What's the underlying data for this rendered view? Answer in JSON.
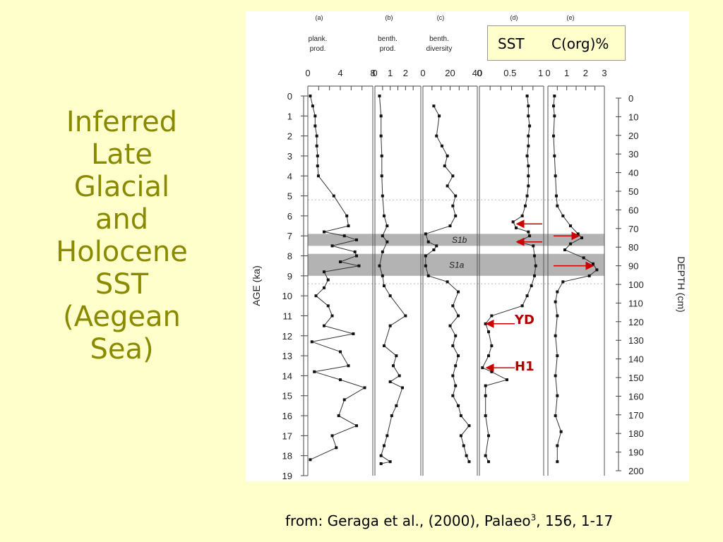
{
  "slide": {
    "title_lines": [
      "Inferred",
      "Late",
      "Glacial",
      "and",
      "Holocene",
      "SST",
      "(Aegean",
      "Sea)"
    ],
    "citation": {
      "prefix": "from: Geraga et al., (2000), Palaeo",
      "superscript": "3",
      "suffix": ", 156, 1-17"
    },
    "overlay_labels": {
      "sst": "SST",
      "corg": "C(org)%"
    },
    "markers": {
      "yd": "YD",
      "h1": "H1"
    },
    "colors": {
      "background": "#ffffcc",
      "title": "#8a8a00",
      "arrows": "#cc0000"
    }
  },
  "chart_data": {
    "type": "line",
    "left_axis": {
      "label": "AGE (ka)",
      "ticks": [
        0,
        1,
        2,
        3,
        4,
        5,
        6,
        7,
        8,
        9,
        10,
        11,
        12,
        13,
        14,
        15,
        16,
        17,
        18,
        19
      ]
    },
    "right_axis": {
      "label": "DEPTH (cm)",
      "ticks": [
        0,
        10,
        20,
        30,
        40,
        50,
        60,
        70,
        80,
        90,
        100,
        110,
        120,
        130,
        140,
        150,
        160,
        170,
        180,
        190,
        200
      ]
    },
    "shaded_bands": [
      {
        "label": "S1b",
        "from_ka": 6.9,
        "to_ka": 7.5
      },
      {
        "label": "S1a",
        "from_ka": 7.9,
        "to_ka": 9.0
      }
    ],
    "panels": [
      {
        "id": "a",
        "header": "(a)",
        "name": [
          "plank.",
          "prod."
        ],
        "xlim": [
          0,
          8
        ],
        "tick_labels": [
          "0",
          "4",
          "8"
        ],
        "tick_values": [
          0,
          4,
          8
        ],
        "points": [
          {
            "x": 0.3,
            "age": 0
          },
          {
            "x": 0.6,
            "age": 0.5
          },
          {
            "x": 0.9,
            "age": 1
          },
          {
            "x": 0.9,
            "age": 1.5
          },
          {
            "x": 1.1,
            "age": 2
          },
          {
            "x": 1.1,
            "age": 2.5
          },
          {
            "x": 1.2,
            "age": 3
          },
          {
            "x": 1.2,
            "age": 3.5
          },
          {
            "x": 1.3,
            "age": 4
          },
          {
            "x": 3.2,
            "age": 5
          },
          {
            "x": 4.8,
            "age": 6
          },
          {
            "x": 5.0,
            "age": 6.5
          },
          {
            "x": 2.0,
            "age": 6.8
          },
          {
            "x": 4.5,
            "age": 7
          },
          {
            "x": 6.0,
            "age": 7.2
          },
          {
            "x": 3.0,
            "age": 7.5
          },
          {
            "x": 5.8,
            "age": 7.8
          },
          {
            "x": 6.0,
            "age": 8
          },
          {
            "x": 4.0,
            "age": 8.3
          },
          {
            "x": 6.3,
            "age": 8.5
          },
          {
            "x": 2.0,
            "age": 8.8
          },
          {
            "x": 2.5,
            "age": 9.2
          },
          {
            "x": 2.0,
            "age": 9.6
          },
          {
            "x": 1.0,
            "age": 10
          },
          {
            "x": 2.5,
            "age": 10.5
          },
          {
            "x": 3.0,
            "age": 11
          },
          {
            "x": 2.0,
            "age": 11.5
          },
          {
            "x": 5.6,
            "age": 11.9
          },
          {
            "x": 0.5,
            "age": 12.3
          },
          {
            "x": 4.0,
            "age": 12.8
          },
          {
            "x": 5.0,
            "age": 13.5
          },
          {
            "x": 0.8,
            "age": 13.8
          },
          {
            "x": 4.0,
            "age": 14.2
          },
          {
            "x": 7.0,
            "age": 14.6
          },
          {
            "x": 4.5,
            "age": 15.2
          },
          {
            "x": 3.8,
            "age": 16
          },
          {
            "x": 6.0,
            "age": 16.5
          },
          {
            "x": 3.0,
            "age": 17
          },
          {
            "x": 3.5,
            "age": 17.6
          },
          {
            "x": 0.3,
            "age": 18.2
          }
        ]
      },
      {
        "id": "b",
        "header": "(b)",
        "name": [
          "benth.",
          "prod."
        ],
        "xlim": [
          0,
          3
        ],
        "tick_labels": [
          "0",
          "1",
          "2"
        ],
        "tick_values": [
          0,
          1,
          2
        ],
        "points": [
          {
            "x": 0.3,
            "age": 0
          },
          {
            "x": 0.4,
            "age": 1
          },
          {
            "x": 0.4,
            "age": 2
          },
          {
            "x": 0.45,
            "age": 3
          },
          {
            "x": 0.45,
            "age": 4
          },
          {
            "x": 0.5,
            "age": 5
          },
          {
            "x": 0.6,
            "age": 6
          },
          {
            "x": 0.8,
            "age": 6.5
          },
          {
            "x": 0.5,
            "age": 7
          },
          {
            "x": 0.8,
            "age": 7.3
          },
          {
            "x": 0.5,
            "age": 7.8
          },
          {
            "x": 0.3,
            "age": 8.5
          },
          {
            "x": 0.5,
            "age": 9
          },
          {
            "x": 0.6,
            "age": 9.5
          },
          {
            "x": 1.0,
            "age": 10
          },
          {
            "x": 2.0,
            "age": 11
          },
          {
            "x": 1.0,
            "age": 11.5
          },
          {
            "x": 0.6,
            "age": 12.5
          },
          {
            "x": 1.4,
            "age": 13
          },
          {
            "x": 1.2,
            "age": 13.5
          },
          {
            "x": 1.6,
            "age": 14
          },
          {
            "x": 1.0,
            "age": 14.3
          },
          {
            "x": 1.8,
            "age": 14.6
          },
          {
            "x": 1.4,
            "age": 15.5
          },
          {
            "x": 1.1,
            "age": 16
          },
          {
            "x": 0.8,
            "age": 17
          },
          {
            "x": 0.6,
            "age": 17.5
          },
          {
            "x": 0.4,
            "age": 18
          },
          {
            "x": 1.0,
            "age": 18.3
          },
          {
            "x": 0.4,
            "age": 18.4
          }
        ]
      },
      {
        "id": "c",
        "header": "(c)",
        "name": [
          "benth.",
          "diversity"
        ],
        "xlim": [
          0,
          40
        ],
        "tick_labels": [
          "0",
          "20",
          "40"
        ],
        "tick_values": [
          0,
          20,
          40
        ],
        "points": [
          {
            "x": 8,
            "age": 0.5
          },
          {
            "x": 12,
            "age": 1
          },
          {
            "x": 10,
            "age": 2
          },
          {
            "x": 14,
            "age": 2.5
          },
          {
            "x": 18,
            "age": 3
          },
          {
            "x": 16,
            "age": 3.5
          },
          {
            "x": 22,
            "age": 4
          },
          {
            "x": 18,
            "age": 4.5
          },
          {
            "x": 24,
            "age": 5
          },
          {
            "x": 22,
            "age": 5.5
          },
          {
            "x": 24,
            "age": 6
          },
          {
            "x": 20,
            "age": 6.5
          },
          {
            "x": 2,
            "age": 6.9
          },
          {
            "x": 4,
            "age": 7.3
          },
          {
            "x": 10,
            "age": 7.5
          },
          {
            "x": 8,
            "age": 7.7
          },
          {
            "x": 2,
            "age": 8.0
          },
          {
            "x": 2,
            "age": 8.5
          },
          {
            "x": 4,
            "age": 9.0
          },
          {
            "x": 18,
            "age": 9.3
          },
          {
            "x": 26,
            "age": 9.8
          },
          {
            "x": 22,
            "age": 10.5
          },
          {
            "x": 26,
            "age": 11
          },
          {
            "x": 20,
            "age": 11.5
          },
          {
            "x": 24,
            "age": 12
          },
          {
            "x": 22,
            "age": 12.5
          },
          {
            "x": 26,
            "age": 13
          },
          {
            "x": 24,
            "age": 13.5
          },
          {
            "x": 22,
            "age": 14
          },
          {
            "x": 24,
            "age": 14.5
          },
          {
            "x": 22,
            "age": 15
          },
          {
            "x": 26,
            "age": 15.5
          },
          {
            "x": 28,
            "age": 16
          },
          {
            "x": 34,
            "age": 16.5
          },
          {
            "x": 28,
            "age": 17
          },
          {
            "x": 30,
            "age": 17.5
          },
          {
            "x": 32,
            "age": 18
          },
          {
            "x": 34,
            "age": 18.3
          }
        ]
      },
      {
        "id": "d",
        "header": "(d)",
        "name": [],
        "xlim": [
          0,
          1.05
        ],
        "tick_labels": [
          "0",
          "0.5",
          "1"
        ],
        "tick_values": [
          0,
          0.5,
          1
        ],
        "points": [
          {
            "x": 0.78,
            "age": 0
          },
          {
            "x": 0.8,
            "age": 0.5
          },
          {
            "x": 0.8,
            "age": 1
          },
          {
            "x": 0.82,
            "age": 1.5
          },
          {
            "x": 0.8,
            "age": 2
          },
          {
            "x": 0.8,
            "age": 2.5
          },
          {
            "x": 0.78,
            "age": 3
          },
          {
            "x": 0.8,
            "age": 3.5
          },
          {
            "x": 0.8,
            "age": 4
          },
          {
            "x": 0.8,
            "age": 4.5
          },
          {
            "x": 0.78,
            "age": 5
          },
          {
            "x": 0.75,
            "age": 5.5
          },
          {
            "x": 0.7,
            "age": 6
          },
          {
            "x": 0.55,
            "age": 6.3
          },
          {
            "x": 0.6,
            "age": 6.6
          },
          {
            "x": 0.8,
            "age": 6.8
          },
          {
            "x": 0.82,
            "age": 7
          },
          {
            "x": 0.65,
            "age": 7.3
          },
          {
            "x": 0.88,
            "age": 7.5
          },
          {
            "x": 0.9,
            "age": 8
          },
          {
            "x": 0.92,
            "age": 8.5
          },
          {
            "x": 0.9,
            "age": 9
          },
          {
            "x": 0.85,
            "age": 9.5
          },
          {
            "x": 0.78,
            "age": 10
          },
          {
            "x": 0.7,
            "age": 10.5
          },
          {
            "x": 0.2,
            "age": 11
          },
          {
            "x": 0.1,
            "age": 11.4
          },
          {
            "x": 0.15,
            "age": 11.8
          },
          {
            "x": 0.2,
            "age": 12.5
          },
          {
            "x": 0.15,
            "age": 13
          },
          {
            "x": 0.05,
            "age": 13.6
          },
          {
            "x": 0.2,
            "age": 13.8
          },
          {
            "x": 0.45,
            "age": 14.2
          },
          {
            "x": 0.1,
            "age": 14.5
          },
          {
            "x": 0.1,
            "age": 15
          },
          {
            "x": 0.1,
            "age": 16
          },
          {
            "x": 0.15,
            "age": 17
          },
          {
            "x": 0.1,
            "age": 18
          },
          {
            "x": 0.15,
            "age": 18.3
          }
        ]
      },
      {
        "id": "e",
        "header": "(e)",
        "name": [],
        "xlim": [
          0,
          3
        ],
        "tick_labels": [
          "0",
          "1",
          "2",
          "3"
        ],
        "tick_values": [
          0,
          1,
          2,
          3
        ],
        "points": [
          {
            "x": 0.35,
            "age": 0
          },
          {
            "x": 0.3,
            "age": 0.5
          },
          {
            "x": 0.35,
            "age": 1
          },
          {
            "x": 0.3,
            "age": 2
          },
          {
            "x": 0.35,
            "age": 3
          },
          {
            "x": 0.4,
            "age": 4
          },
          {
            "x": 0.45,
            "age": 5
          },
          {
            "x": 0.5,
            "age": 5.5
          },
          {
            "x": 0.8,
            "age": 6
          },
          {
            "x": 1.2,
            "age": 6.5
          },
          {
            "x": 1.6,
            "age": 6.9
          },
          {
            "x": 1.8,
            "age": 7.1
          },
          {
            "x": 1.2,
            "age": 7.4
          },
          {
            "x": 0.9,
            "age": 7.7
          },
          {
            "x": 1.9,
            "age": 8.1
          },
          {
            "x": 2.4,
            "age": 8.4
          },
          {
            "x": 2.6,
            "age": 8.7
          },
          {
            "x": 2.2,
            "age": 9.0
          },
          {
            "x": 0.8,
            "age": 9.3
          },
          {
            "x": 0.5,
            "age": 9.8
          },
          {
            "x": 0.4,
            "age": 10.3
          },
          {
            "x": 0.5,
            "age": 11
          },
          {
            "x": 0.4,
            "age": 12
          },
          {
            "x": 0.5,
            "age": 13
          },
          {
            "x": 0.4,
            "age": 14
          },
          {
            "x": 0.5,
            "age": 15
          },
          {
            "x": 0.4,
            "age": 16
          },
          {
            "x": 0.7,
            "age": 16.8
          },
          {
            "x": 0.5,
            "age": 17.5
          },
          {
            "x": 0.5,
            "age": 18.3
          }
        ]
      }
    ],
    "annotations": [
      {
        "type": "arrow",
        "label": "YD",
        "panel": "d",
        "age": 11.4
      },
      {
        "type": "arrow",
        "label": "H1",
        "panel": "d",
        "age": 13.6
      },
      {
        "type": "arrow",
        "label": "",
        "panel": "d",
        "age": 6.4
      },
      {
        "type": "arrow",
        "label": "",
        "panel": "d",
        "age": 7.3
      },
      {
        "type": "arrow",
        "label": "",
        "panel": "e",
        "age": 7.0
      },
      {
        "type": "arrow",
        "label": "",
        "panel": "e",
        "age": 8.5
      }
    ]
  }
}
